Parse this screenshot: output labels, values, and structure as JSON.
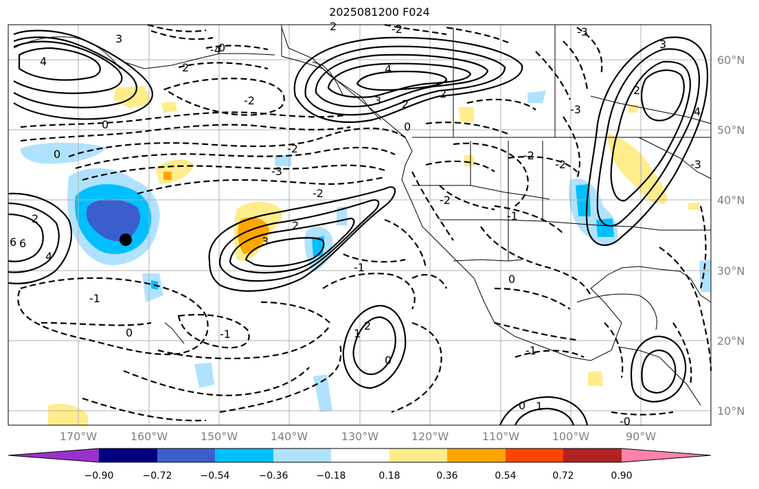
{
  "title": "2025081200 F024",
  "lat_labels": [
    "60°N",
    "50°N",
    "40°N",
    "30°N",
    "20°N",
    "10°N"
  ],
  "lon_labels": [
    "170°W",
    "160°W",
    "150°W",
    "140°W",
    "130°W",
    "120°W",
    "110°W",
    "100°W",
    "90°W"
  ],
  "colorbar": {
    "colors": [
      "#9932cc",
      "#000080",
      "#3a5fcd",
      "#00bfff",
      "#b0e2ff",
      "#ffffff",
      "#ffec8b",
      "#ffa500",
      "#ff4500",
      "#b22222",
      "#ff82ab"
    ],
    "ticks": [
      "−0.90",
      "−0.72",
      "−0.54",
      "−0.36",
      "−0.18",
      "0.18",
      "0.36",
      "0.54",
      "0.72",
      "0.90"
    ]
  },
  "contour_labels": [
    "4",
    "3",
    "2",
    "0",
    "4",
    "3",
    "2",
    "2",
    "2",
    "3",
    "4",
    "6",
    "2",
    "1",
    "0",
    "-2",
    "-2",
    "-1",
    "0",
    "2",
    "3",
    "4",
    "2",
    "0",
    "2",
    "0",
    "-3",
    "-2",
    "-3",
    "-2",
    "0",
    "-2",
    "-1",
    "-2",
    "-2",
    "-1",
    "1",
    "0",
    "0",
    "-1",
    "-0",
    "-1",
    "-3",
    "-4",
    "6",
    "-3"
  ],
  "marker": "storm-center-marker"
}
